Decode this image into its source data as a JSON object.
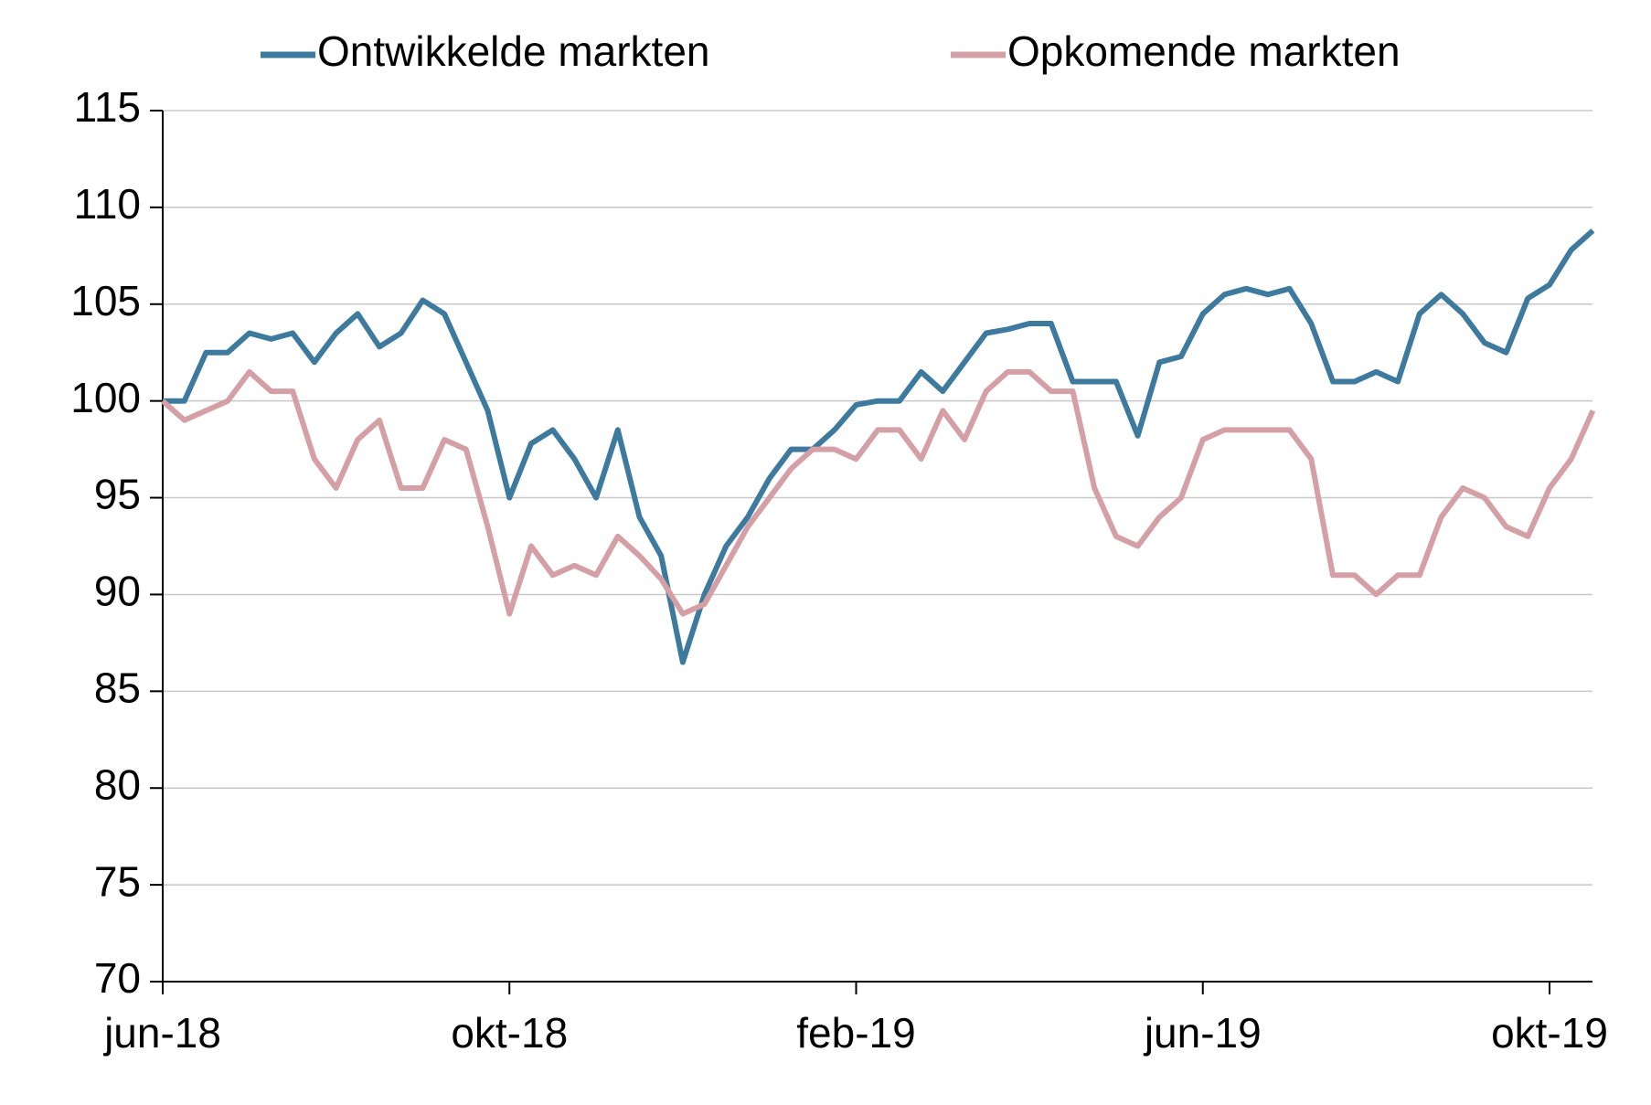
{
  "chart_data": {
    "type": "line",
    "categories": [
      "jun-18",
      null,
      null,
      null,
      null,
      null,
      null,
      null,
      null,
      null,
      null,
      null,
      null,
      null,
      null,
      null,
      "okt-18",
      null,
      null,
      null,
      null,
      null,
      null,
      null,
      null,
      null,
      null,
      null,
      null,
      null,
      null,
      null,
      "feb-19",
      null,
      null,
      null,
      null,
      null,
      null,
      null,
      null,
      null,
      null,
      null,
      null,
      null,
      null,
      null,
      "jun-19",
      null,
      null,
      null,
      null,
      null,
      null,
      null,
      null,
      null,
      null,
      null,
      null,
      null,
      null,
      null,
      "okt-19",
      null,
      null
    ],
    "series": [
      {
        "name": "Ontwikkelde markten",
        "color": "#3e7a9e",
        "values": [
          100,
          100,
          102.5,
          102.5,
          103.5,
          103.2,
          103.5,
          102,
          103.5,
          104.5,
          102.8,
          103.5,
          105.2,
          104.5,
          102,
          99.5,
          95,
          97.8,
          98.5,
          97,
          95,
          98.5,
          94,
          92,
          86.5,
          90,
          92.5,
          94,
          96,
          97.5,
          97.5,
          98.5,
          99.8,
          100,
          100,
          101.5,
          100.5,
          102,
          103.5,
          103.7,
          104,
          104,
          101,
          101,
          101,
          98.2,
          102,
          102.3,
          104.5,
          105.5,
          105.8,
          105.5,
          105.8,
          104,
          101,
          101,
          101.5,
          101,
          104.5,
          105.5,
          104.5,
          103,
          102.5,
          105.3,
          106,
          107.8,
          108.8
        ]
      },
      {
        "name": "Opkomende markten",
        "color": "#d4a0a6",
        "values": [
          100,
          99,
          99.5,
          100,
          101.5,
          100.5,
          100.5,
          97,
          95.5,
          98,
          99,
          95.5,
          95.5,
          98,
          97.5,
          93.5,
          89,
          92.5,
          91,
          91.5,
          91,
          93,
          92,
          90.8,
          89,
          89.5,
          91.5,
          93.5,
          95,
          96.5,
          97.5,
          97.5,
          97,
          98.5,
          98.5,
          97,
          99.5,
          98,
          100.5,
          101.5,
          101.5,
          100.5,
          100.5,
          95.5,
          93,
          92.5,
          94,
          95,
          98,
          98.5,
          98.5,
          98.5,
          98.5,
          97,
          91,
          91,
          90,
          91,
          91,
          94,
          95.5,
          95,
          93.5,
          93,
          95.5,
          97,
          99.5
        ]
      }
    ],
    "ylim": [
      70,
      115
    ],
    "yticks": [
      70,
      75,
      80,
      85,
      90,
      95,
      100,
      105,
      110,
      115
    ],
    "grid": true,
    "legend": "top"
  }
}
